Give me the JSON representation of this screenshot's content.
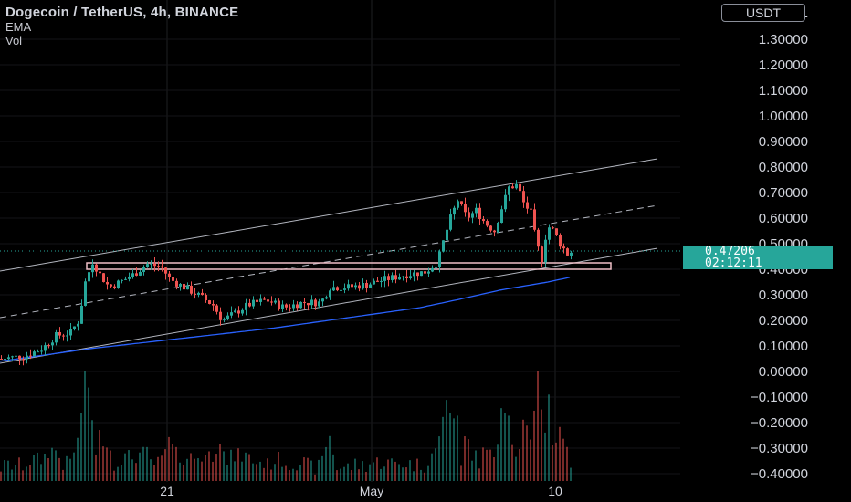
{
  "legend": {
    "title": "Dogecoin / TetherUS, 4h, BINANCE",
    "indicators": [
      "EMA",
      "Vol"
    ]
  },
  "price_axis": {
    "currency": "USDT",
    "top_label": "1",
    "labels": [
      "1.30000",
      "1.20000",
      "1.10000",
      "1.00000",
      "0.90000",
      "0.80000",
      "0.70000",
      "0.60000",
      "0.50000",
      "0.40000",
      "0.30000",
      "0.20000",
      "0.10000",
      "0.00000",
      "−0.10000",
      "−0.20000",
      "−0.30000",
      "−0.40000"
    ]
  },
  "time_axis": {
    "labels": [
      "21",
      "May",
      "10"
    ]
  },
  "last_price": {
    "value": "0.47206",
    "countdown": "02:12:11",
    "color": "#26a69a"
  },
  "colors": {
    "up": "#26a69a",
    "down": "#ef5350",
    "ema": "#2962ff",
    "background": "#000000",
    "channel": "#b2b5be"
  },
  "chart_data": {
    "type": "candlestick",
    "symbol": "DOGEUSDT",
    "interval": "4h",
    "y_range": [
      -0.4,
      1.4
    ],
    "close_path": [
      {
        "t": 0,
        "v": 0.05
      },
      {
        "t": 25,
        "v": 0.06
      },
      {
        "t": 45,
        "v": 0.09
      },
      {
        "t": 60,
        "v": 0.14
      },
      {
        "t": 75,
        "v": 0.15
      },
      {
        "t": 85,
        "v": 0.2
      },
      {
        "t": 92,
        "v": 0.35
      },
      {
        "t": 100,
        "v": 0.43
      },
      {
        "t": 108,
        "v": 0.38
      },
      {
        "t": 118,
        "v": 0.33
      },
      {
        "t": 130,
        "v": 0.35
      },
      {
        "t": 145,
        "v": 0.38
      },
      {
        "t": 160,
        "v": 0.42
      },
      {
        "t": 175,
        "v": 0.41
      },
      {
        "t": 185,
        "v": 0.36
      },
      {
        "t": 200,
        "v": 0.33
      },
      {
        "t": 215,
        "v": 0.3
      },
      {
        "t": 232,
        "v": 0.26
      },
      {
        "t": 242,
        "v": 0.2
      },
      {
        "t": 252,
        "v": 0.22
      },
      {
        "t": 270,
        "v": 0.26
      },
      {
        "t": 290,
        "v": 0.28
      },
      {
        "t": 310,
        "v": 0.25
      },
      {
        "t": 330,
        "v": 0.27
      },
      {
        "t": 350,
        "v": 0.27
      },
      {
        "t": 360,
        "v": 0.33
      },
      {
        "t": 380,
        "v": 0.33
      },
      {
        "t": 400,
        "v": 0.34
      },
      {
        "t": 420,
        "v": 0.36
      },
      {
        "t": 445,
        "v": 0.38
      },
      {
        "t": 465,
        "v": 0.39
      },
      {
        "t": 478,
        "v": 0.43
      },
      {
        "t": 485,
        "v": 0.52
      },
      {
        "t": 492,
        "v": 0.6
      },
      {
        "t": 500,
        "v": 0.67
      },
      {
        "t": 510,
        "v": 0.6
      },
      {
        "t": 520,
        "v": 0.63
      },
      {
        "t": 530,
        "v": 0.58
      },
      {
        "t": 540,
        "v": 0.55
      },
      {
        "t": 548,
        "v": 0.64
      },
      {
        "t": 556,
        "v": 0.72
      },
      {
        "t": 565,
        "v": 0.73
      },
      {
        "t": 572,
        "v": 0.66
      },
      {
        "t": 580,
        "v": 0.62
      },
      {
        "t": 586,
        "v": 0.5
      },
      {
        "t": 592,
        "v": 0.44
      },
      {
        "t": 598,
        "v": 0.57
      },
      {
        "t": 605,
        "v": 0.55
      },
      {
        "t": 612,
        "v": 0.5
      },
      {
        "t": 620,
        "v": 0.46
      },
      {
        "t": 626,
        "v": 0.472
      }
    ],
    "ema_path": [
      {
        "t": 0,
        "v": 0.04
      },
      {
        "t": 100,
        "v": 0.09
      },
      {
        "t": 200,
        "v": 0.13
      },
      {
        "t": 300,
        "v": 0.17
      },
      {
        "t": 400,
        "v": 0.22
      },
      {
        "t": 460,
        "v": 0.25
      },
      {
        "t": 500,
        "v": 0.28
      },
      {
        "t": 550,
        "v": 0.32
      },
      {
        "t": 600,
        "v": 0.35
      },
      {
        "t": 626,
        "v": 0.37
      }
    ],
    "last_close": 0.47206
  }
}
